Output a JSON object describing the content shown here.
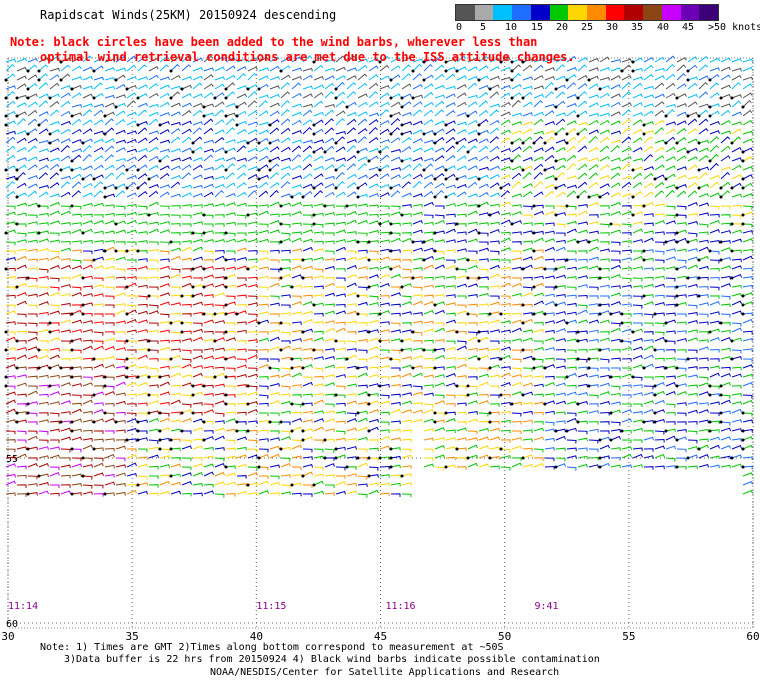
{
  "header": {
    "title": "Rapidscat Winds(25KM) 20150924 descending"
  },
  "note": {
    "line1": "Note: black circles have been added to the wind barbs, wherever less than",
    "line2": "optimal wind retrieval conditions are met due to the ISS attitude changes."
  },
  "legend": {
    "colors": [
      "#555555",
      "#aaaaaa",
      "#00bfff",
      "#1e6fff",
      "#0000c8",
      "#00c800",
      "#ffd700",
      "#ff8c00",
      "#ff0000",
      "#b00000",
      "#8b4513",
      "#c800ff",
      "#6b00b4",
      "#3c0078"
    ],
    "labels": [
      "0",
      "5",
      "10",
      "15",
      "20",
      "25",
      "30",
      "35",
      "40",
      "45",
      ">50 knots"
    ],
    "unit": "knots"
  },
  "map": {
    "lon_ticks": [
      "30",
      "35",
      "40",
      "45",
      "50",
      "55",
      "60"
    ],
    "lat_ticks": [
      "55",
      "60"
    ],
    "times": [
      "11:14",
      "11:15",
      "11:16",
      "9:41"
    ],
    "time_lons": [
      30,
      40,
      45.2,
      51.2
    ],
    "lon_range": [
      30,
      60
    ],
    "lat_range": [
      -45,
      -60
    ]
  },
  "footer": {
    "line1": "Note: 1) Times are GMT 2)Times along bottom correspond to measurement at ~50S",
    "line2": "3)Data buffer is 22 hrs from 20150924 4) Black wind barbs indicate possible contamination",
    "credit": "NOAA/NESDIS/Center for Satellite Applications and Research"
  }
}
